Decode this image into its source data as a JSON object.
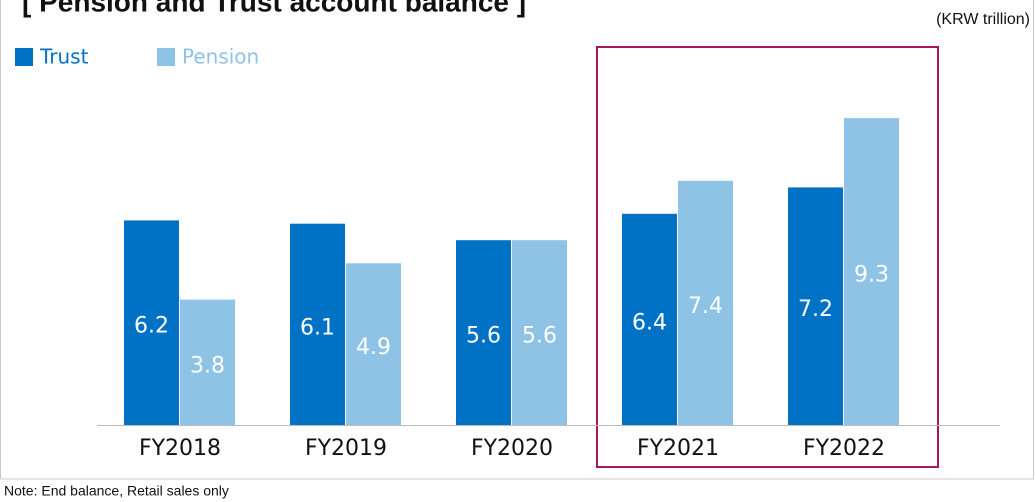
{
  "chart_data": {
    "type": "bar",
    "title": "[ Pension and Trust account balance ]",
    "unit": "(KRW trillion)",
    "note": "Note: End balance, Retail sales only",
    "categories": [
      "FY2018",
      "FY2019",
      "FY2020",
      "FY2021",
      "FY2022"
    ],
    "series": [
      {
        "name": "Trust",
        "color": "#0072c6",
        "values": [
          6.2,
          6.1,
          5.6,
          6.4,
          7.2
        ]
      },
      {
        "name": "Pension",
        "color": "#8ec3e6",
        "values": [
          3.8,
          4.9,
          5.6,
          7.4,
          9.3
        ]
      }
    ]
  }
}
